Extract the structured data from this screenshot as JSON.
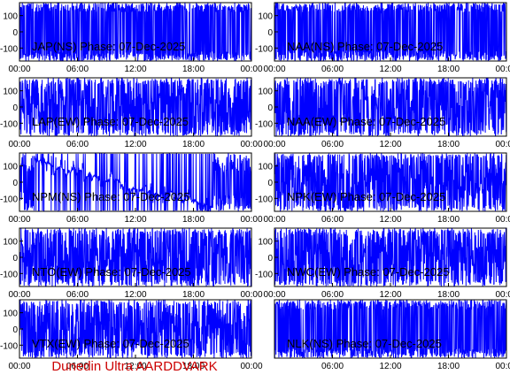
{
  "footer": {
    "text": "Dunedin Ultra AARDDVARK",
    "color": "#cc0000"
  },
  "colors": {
    "trace": "#0000ff",
    "axis": "#000000",
    "background": "#ffffff"
  },
  "chart_data": [
    {
      "type": "line",
      "title": "JAP(NS) Phase: 07-Dec-2025",
      "x_ticks": [
        "00:00",
        "06:00",
        "12:00",
        "18:00",
        "00:00"
      ],
      "y_ticks": [
        100,
        0,
        -100
      ],
      "ylim": [
        -180,
        180
      ],
      "xlim_hours": [
        0,
        24
      ],
      "series": [
        {
          "pattern": "saturated"
        }
      ]
    },
    {
      "type": "line",
      "title": "NAA(NS) Phase: 07-Dec-2025",
      "x_ticks": [
        "00:00",
        "06:00",
        "12:00",
        "18:00",
        "00:00"
      ],
      "y_ticks": [
        100,
        0,
        -100
      ],
      "ylim": [
        -180,
        180
      ],
      "xlim_hours": [
        0,
        24
      ],
      "series": [
        {
          "pattern": "saturated"
        }
      ]
    },
    {
      "type": "line",
      "title": "LAP(EW) Phase: 07-Dec-2025",
      "x_ticks": [
        "00:00",
        "06:00",
        "12:00",
        "18:00",
        "00:00"
      ],
      "y_ticks": [
        100,
        0,
        -100
      ],
      "ylim": [
        -180,
        180
      ],
      "xlim_hours": [
        0,
        24
      ],
      "series": [
        {
          "pattern": "dense"
        }
      ]
    },
    {
      "type": "line",
      "title": "NAA(EW) Phase: 07-Dec-2025",
      "x_ticks": [
        "00:00",
        "06:00",
        "12:00",
        "18:00",
        "00:00"
      ],
      "y_ticks": [
        100,
        0,
        -100
      ],
      "ylim": [
        -180,
        180
      ],
      "xlim_hours": [
        0,
        24
      ],
      "series": [
        {
          "pattern": "dense"
        }
      ]
    },
    {
      "type": "line",
      "title": "NPM(NS) Phase: 07-Dec-2025",
      "x_ticks": [
        "00:00",
        "06:00",
        "12:00",
        "18:00",
        "00:00"
      ],
      "y_ticks": [
        100,
        0,
        -100
      ],
      "ylim": [
        -180,
        180
      ],
      "xlim_hours": [
        0,
        24
      ],
      "series": [
        {
          "pattern": "npm"
        }
      ]
    },
    {
      "type": "line",
      "title": "NPK(EW) Phase: 07-Dec-2025",
      "x_ticks": [
        "00:00",
        "06:00",
        "12:00",
        "18:00",
        "00:00"
      ],
      "y_ticks": [
        100,
        0,
        -100
      ],
      "ylim": [
        -180,
        180
      ],
      "xlim_hours": [
        0,
        24
      ],
      "series": [
        {
          "pattern": "dense"
        }
      ]
    },
    {
      "type": "line",
      "title": "NTO(EW) Phase: 07-Dec-2025",
      "x_ticks": [
        "00:00",
        "06:00",
        "12:00",
        "18:00",
        "00:00"
      ],
      "y_ticks": [
        100,
        0,
        -100
      ],
      "ylim": [
        -180,
        180
      ],
      "xlim_hours": [
        0,
        24
      ],
      "series": [
        {
          "pattern": "dense"
        }
      ]
    },
    {
      "type": "line",
      "title": "NWC(EW) Phase: 07-Dec-2025",
      "x_ticks": [
        "00:00",
        "06:00",
        "12:00",
        "18:00",
        "00:00"
      ],
      "y_ticks": [
        100,
        0,
        -100
      ],
      "ylim": [
        -180,
        180
      ],
      "xlim_hours": [
        0,
        24
      ],
      "series": [
        {
          "pattern": "dense"
        }
      ]
    },
    {
      "type": "line",
      "title": "VTX(EW) Phase: 07-Dec-2025",
      "x_ticks": [
        "00:00",
        "06:00",
        "12:00",
        "18:00",
        "00:00"
      ],
      "y_ticks": [
        100,
        0,
        -100
      ],
      "ylim": [
        -180,
        180
      ],
      "xlim_hours": [
        0,
        24
      ],
      "series": [
        {
          "pattern": "dense"
        }
      ]
    },
    {
      "type": "line",
      "title": "NLK(NS) Phase: 07-Dec-2025",
      "x_ticks": [
        "06:00",
        "12:00",
        "18:00",
        "00:00"
      ],
      "y_ticks": [],
      "ylim": [
        -180,
        180
      ],
      "xlim_hours": [
        0,
        24
      ],
      "series": [
        {
          "pattern": "saturated"
        }
      ]
    }
  ]
}
